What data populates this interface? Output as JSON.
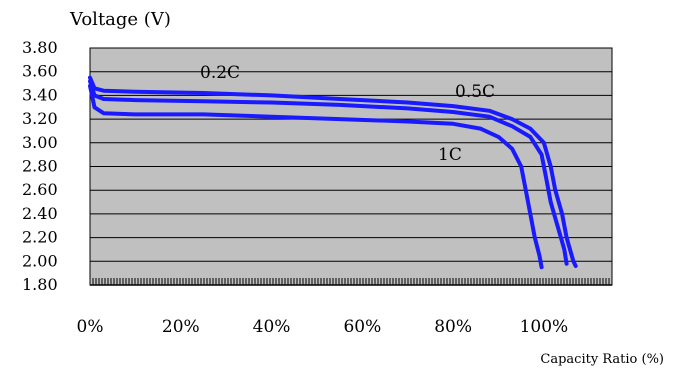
{
  "chart_data": {
    "type": "line",
    "title": "",
    "ylabel": "Voltage (V)",
    "xlabel": "Capacity Ratio (%)",
    "ylim": [
      1.8,
      3.8
    ],
    "xlim": [
      0,
      115
    ],
    "grid": true,
    "plot_background": "#c0c0c0",
    "line_color": "#1a1aff",
    "y_ticks": [
      "3.80",
      "3.60",
      "3.40",
      "3.20",
      "3.00",
      "2.80",
      "2.60",
      "2.40",
      "2.20",
      "2.00",
      "1.80"
    ],
    "x_ticks": [
      "0%",
      "20%",
      "40%",
      "60%",
      "80%",
      "100%"
    ],
    "series": [
      {
        "name": "0.2C",
        "points": [
          [
            0,
            3.55
          ],
          [
            1,
            3.46
          ],
          [
            3,
            3.44
          ],
          [
            10,
            3.43
          ],
          [
            25,
            3.42
          ],
          [
            40,
            3.4
          ],
          [
            55,
            3.37
          ],
          [
            70,
            3.34
          ],
          [
            80,
            3.31
          ],
          [
            88,
            3.27
          ],
          [
            93,
            3.2
          ],
          [
            97,
            3.12
          ],
          [
            100,
            3.0
          ],
          [
            101.5,
            2.8
          ],
          [
            102.5,
            2.6
          ],
          [
            104,
            2.4
          ],
          [
            105,
            2.2
          ],
          [
            106.5,
            2.0
          ],
          [
            107,
            1.96
          ]
        ]
      },
      {
        "name": "0.5C",
        "points": [
          [
            0,
            3.52
          ],
          [
            1,
            3.4
          ],
          [
            3,
            3.37
          ],
          [
            10,
            3.36
          ],
          [
            25,
            3.35
          ],
          [
            40,
            3.34
          ],
          [
            55,
            3.32
          ],
          [
            70,
            3.29
          ],
          [
            80,
            3.26
          ],
          [
            88,
            3.22
          ],
          [
            93,
            3.14
          ],
          [
            97,
            3.05
          ],
          [
            99.5,
            2.9
          ],
          [
            100.5,
            2.7
          ],
          [
            101.5,
            2.5
          ],
          [
            103,
            2.3
          ],
          [
            104.5,
            2.1
          ],
          [
            105,
            1.98
          ]
        ]
      },
      {
        "name": "1C",
        "points": [
          [
            0,
            3.48
          ],
          [
            1,
            3.3
          ],
          [
            3,
            3.25
          ],
          [
            10,
            3.24
          ],
          [
            25,
            3.24
          ],
          [
            40,
            3.22
          ],
          [
            55,
            3.2
          ],
          [
            70,
            3.18
          ],
          [
            80,
            3.16
          ],
          [
            86,
            3.12
          ],
          [
            90,
            3.05
          ],
          [
            93,
            2.95
          ],
          [
            95,
            2.8
          ],
          [
            96,
            2.6
          ],
          [
            97,
            2.4
          ],
          [
            98,
            2.2
          ],
          [
            99,
            2.05
          ],
          [
            99.5,
            1.95
          ]
        ]
      }
    ]
  }
}
